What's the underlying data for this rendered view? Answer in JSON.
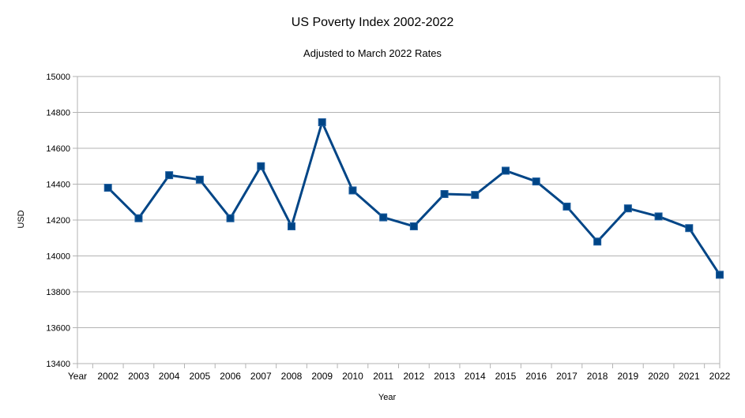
{
  "chart_data": {
    "type": "line",
    "title": "US Poverty Index 2002-2022",
    "subtitle": "Adjusted to March 2022 Rates",
    "xlabel": "Year",
    "ylabel": "USD",
    "categories": [
      "Year",
      "2002",
      "2003",
      "2004",
      "2005",
      "2006",
      "2007",
      "2008",
      "2009",
      "2010",
      "2011",
      "2012",
      "2013",
      "2014",
      "2015",
      "2016",
      "2017",
      "2018",
      "2019",
      "2020",
      "2021",
      "2022"
    ],
    "series": [
      {
        "values": [
          null,
          14380,
          14210,
          14450,
          14425,
          14210,
          14500,
          14165,
          14745,
          14365,
          14215,
          14165,
          14345,
          14340,
          14475,
          14415,
          14275,
          14080,
          14265,
          14220,
          14155,
          13895
        ]
      }
    ],
    "ylim": [
      13400,
      15000
    ],
    "yticks": [
      13400,
      13600,
      13800,
      14000,
      14200,
      14400,
      14600,
      14800,
      15000
    ],
    "grid": true,
    "legend": "none",
    "colors": {
      "line": "#004586",
      "grid": "#b3b3b3",
      "axis": "#b3b3b3"
    }
  }
}
